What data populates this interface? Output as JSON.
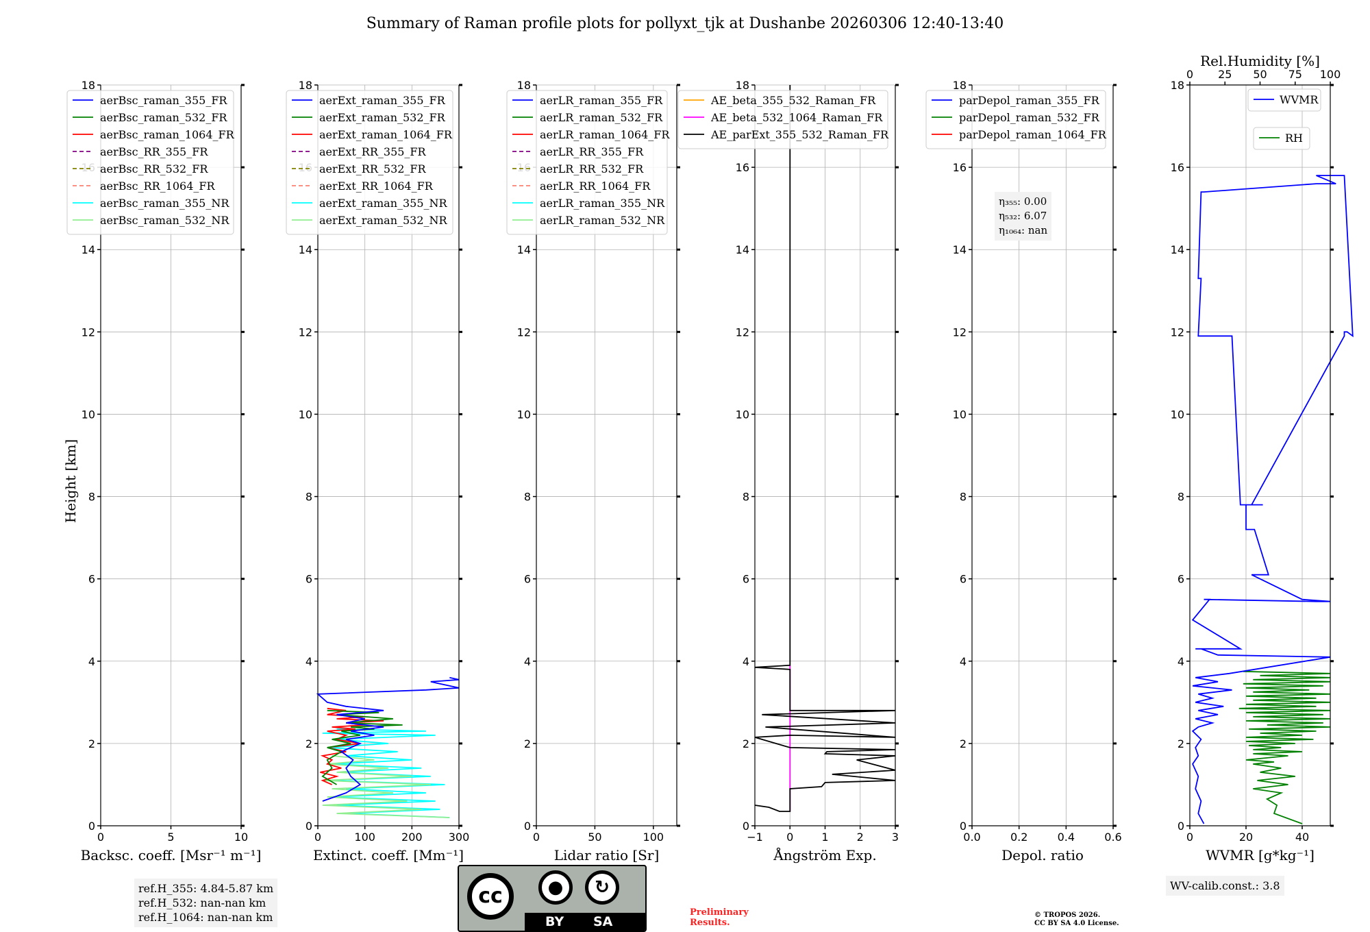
{
  "title": "Summary of Raman profile plots for pollyxt_tjk at Dushanbe 20260306 12:40-13:40",
  "y_axis": {
    "label": "Height [km]",
    "ticks": [
      "0",
      "2",
      "4",
      "6",
      "8",
      "10",
      "12",
      "14",
      "16",
      "18"
    ]
  },
  "chart_data": [
    {
      "type": "line",
      "name": "backscatter",
      "xlabel": "Backsc. coeff. [Msr⁻¹ m⁻¹]",
      "xlim": [
        0,
        10
      ],
      "ylim": [
        0,
        18
      ],
      "xticks": [
        "0",
        "5",
        "10"
      ],
      "legend": [
        "aerBsc_raman_355_FR",
        "aerBsc_raman_532_FR",
        "aerBsc_raman_1064_FR",
        "aerBsc_RR_355_FR",
        "aerBsc_RR_532_FR",
        "aerBsc_RR_1064_FR",
        "aerBsc_raman_355_NR",
        "aerBsc_raman_532_NR"
      ],
      "series": []
    },
    {
      "type": "line",
      "name": "extinction",
      "xlabel": "Extinct. coeff. [Mm⁻¹]",
      "xlim": [
        0,
        300
      ],
      "ylim": [
        0,
        18
      ],
      "xticks": [
        "0",
        "100",
        "200",
        "300"
      ],
      "legend": [
        "aerExt_raman_355_FR",
        "aerExt_raman_532_FR",
        "aerExt_raman_1064_FR",
        "aerExt_RR_355_FR",
        "aerExt_RR_532_FR",
        "aerExt_RR_1064_FR",
        "aerExt_raman_355_NR",
        "aerExt_raman_532_NR"
      ],
      "series": [
        {
          "name": "aerExt_raman_355_NR",
          "x": [
            280,
            60,
            260,
            40,
            250,
            30,
            230,
            60,
            270,
            20,
            240,
            50,
            220,
            30,
            200,
            60,
            170,
            20,
            150,
            40,
            250,
            10,
            230,
            40
          ],
          "y": [
            0.2,
            0.3,
            0.4,
            0.5,
            0.6,
            0.7,
            0.8,
            0.9,
            1.0,
            1.1,
            1.2,
            1.3,
            1.4,
            1.5,
            1.6,
            1.7,
            1.8,
            1.9,
            2.0,
            2.1,
            2.2,
            2.25,
            2.3,
            2.35
          ]
        },
        {
          "name": "aerExt_raman_532_NR",
          "x": [
            280,
            40,
            220,
            10,
            190,
            20,
            160,
            30,
            240,
            10,
            200,
            40,
            150,
            20,
            120,
            30
          ],
          "y": [
            0.2,
            0.3,
            0.4,
            0.5,
            0.6,
            0.7,
            0.8,
            0.9,
            1.0,
            1.1,
            1.2,
            1.3,
            1.4,
            1.5,
            1.6,
            1.7
          ]
        },
        {
          "name": "aerExt_raman_1064_FR",
          "x": [
            30,
            10,
            40,
            5,
            50,
            20,
            30,
            10,
            60,
            20,
            90,
            40,
            60,
            20,
            80,
            30,
            100,
            60,
            140,
            40,
            100,
            20,
            60,
            20
          ],
          "y": [
            1.0,
            1.1,
            1.2,
            1.3,
            1.4,
            1.5,
            1.6,
            1.7,
            1.8,
            1.9,
            2.0,
            2.1,
            2.2,
            2.3,
            2.35,
            2.4,
            2.45,
            2.5,
            2.55,
            2.6,
            2.65,
            2.7,
            2.8,
            2.85
          ]
        },
        {
          "name": "aerExt_raman_532_FR",
          "x": [
            40,
            10,
            30,
            20,
            50,
            20,
            70,
            30,
            90,
            50,
            120,
            70,
            180,
            60,
            160,
            40,
            130,
            20
          ],
          "y": [
            1.0,
            1.2,
            1.4,
            1.6,
            1.8,
            1.9,
            2.0,
            2.1,
            2.2,
            2.3,
            2.35,
            2.4,
            2.45,
            2.5,
            2.6,
            2.7,
            2.75,
            2.8
          ]
        },
        {
          "name": "aerExt_raman_355_FR",
          "x": [
            10,
            60,
            90,
            70,
            60,
            75,
            50,
            90,
            60,
            120,
            70,
            140,
            60,
            100,
            40,
            140,
            60,
            20,
            0,
            230,
            300,
            240,
            300,
            280
          ],
          "y": [
            0.6,
            0.8,
            1.0,
            1.2,
            1.4,
            1.6,
            1.8,
            2.0,
            2.1,
            2.2,
            2.3,
            2.4,
            2.5,
            2.6,
            2.7,
            2.8,
            2.9,
            3.0,
            3.2,
            3.3,
            3.35,
            3.5,
            3.55,
            3.6
          ]
        }
      ]
    },
    {
      "type": "line",
      "name": "lidar_ratio",
      "xlabel": "Lidar ratio [Sr]",
      "xlim": [
        0,
        120
      ],
      "ylim": [
        0,
        18
      ],
      "xticks": [
        "0",
        "50",
        "100"
      ],
      "legend": [
        "aerLR_raman_355_FR",
        "aerLR_raman_532_FR",
        "aerLR_raman_1064_FR",
        "aerLR_RR_355_FR",
        "aerLR_RR_532_FR",
        "aerLR_RR_1064_FR",
        "aerLR_raman_355_NR",
        "aerLR_raman_532_NR"
      ],
      "series": []
    },
    {
      "type": "line",
      "name": "angstrom",
      "xlabel": "Ångström Exp.",
      "xlim": [
        -1,
        3
      ],
      "ylim": [
        0,
        18
      ],
      "xticks": [
        "−1",
        "0",
        "1",
        "2",
        "3"
      ],
      "legend": [
        "AE_beta_355_532_Raman_FR",
        "AE_beta_532_1064_Raman_FR",
        "AE_parExt_355_532_Raman_FR"
      ],
      "series": [
        {
          "name": "AE_beta_532_1064_Raman_FR",
          "x": [
            0,
            0
          ],
          "y": [
            0.35,
            3.9
          ]
        },
        {
          "name": "AE_parExt_355_532_Raman_FR",
          "x": [
            -1,
            -0.6,
            -0.3,
            0,
            0,
            0.9,
            1,
            3,
            1.2,
            3,
            1.9,
            3,
            1,
            1.05,
            3,
            0,
            -1,
            0,
            3,
            -0.7,
            3,
            -0.8,
            3,
            0,
            0,
            -1,
            0,
            0
          ],
          "y": [
            0.5,
            0.45,
            0.35,
            0.35,
            0.9,
            0.95,
            1.05,
            1.1,
            1.25,
            1.35,
            1.6,
            1.7,
            1.75,
            1.8,
            1.85,
            1.9,
            2.15,
            2.2,
            2.15,
            2.4,
            2.5,
            2.7,
            2.8,
            2.8,
            3.8,
            3.85,
            3.9,
            18
          ]
        }
      ]
    },
    {
      "type": "line",
      "name": "depolarization",
      "xlabel": "Depol. ratio",
      "xlim": [
        0,
        0.6
      ],
      "ylim": [
        0,
        18
      ],
      "xticks": [
        "0.0",
        "0.2",
        "0.4",
        "0.6"
      ],
      "legend": [
        "parDepol_raman_355_FR",
        "parDepol_raman_532_FR",
        "parDepol_raman_1064_FR"
      ],
      "series": []
    },
    {
      "type": "line",
      "name": "water_vapor",
      "xlabel": "WVMR [g*kg⁻¹]",
      "xlim": [
        0,
        50
      ],
      "ylim": [
        0,
        18
      ],
      "xticks": [
        "0",
        "20",
        "40"
      ],
      "top_axis": {
        "label": "Rel.Humidity [%]",
        "lim": [
          0,
          100
        ],
        "ticks": [
          "0",
          "25",
          "50",
          "75",
          "100"
        ]
      },
      "legend": [
        "WVMR",
        "RH"
      ],
      "series": [
        {
          "name": "RH",
          "axis": "top",
          "x": [
            80,
            60,
            62,
            55,
            65,
            45,
            70,
            48,
            75,
            50,
            65,
            45,
            60,
            40,
            70,
            45,
            80,
            45,
            65,
            42,
            75,
            40,
            88,
            40,
            80,
            50,
            90,
            42,
            100,
            55,
            95,
            40,
            100,
            45,
            95,
            40,
            100,
            35,
            90,
            40,
            100,
            45,
            90,
            40,
            100,
            45,
            85,
            40,
            95,
            38,
            100,
            45,
            100,
            50,
            100,
            38
          ],
          "y": [
            0.05,
            0.3,
            0.5,
            0.65,
            0.8,
            0.9,
            1.0,
            1.1,
            1.2,
            1.3,
            1.4,
            1.5,
            1.55,
            1.6,
            1.7,
            1.75,
            1.8,
            1.85,
            1.9,
            1.95,
            2.0,
            2.05,
            2.1,
            2.15,
            2.2,
            2.25,
            2.3,
            2.35,
            2.4,
            2.45,
            2.5,
            2.55,
            2.6,
            2.65,
            2.7,
            2.75,
            2.8,
            2.85,
            2.9,
            2.95,
            3.0,
            3.05,
            3.1,
            3.15,
            3.2,
            3.25,
            3.3,
            3.35,
            3.4,
            3.45,
            3.5,
            3.55,
            3.6,
            3.65,
            3.7,
            3.75
          ]
        },
        {
          "name": "WVMR",
          "axis": "bottom",
          "x": [
            5,
            3,
            4,
            2,
            3,
            1,
            3,
            2,
            4,
            1,
            3,
            8,
            2,
            10,
            3,
            12,
            2,
            8,
            3,
            15,
            1,
            10,
            2,
            14,
            50,
            10,
            4,
            2,
            18,
            1,
            1,
            7,
            5,
            45,
            50,
            40,
            22,
            28,
            23,
            20,
            20,
            18,
            15,
            3,
            4,
            3,
            4,
            5,
            45,
            52,
            45,
            55,
            58,
            56,
            55,
            55,
            22,
            26,
            19
          ],
          "y": [
            0.05,
            0.3,
            0.6,
            0.9,
            1.2,
            1.5,
            1.7,
            1.9,
            2.1,
            2.3,
            2.4,
            2.5,
            2.6,
            2.7,
            2.8,
            2.9,
            3.0,
            3.1,
            3.2,
            3.3,
            3.4,
            3.5,
            3.6,
            3.7,
            4.1,
            4.15,
            4.3,
            4.3,
            4.3,
            5.0,
            5.0,
            5.5,
            5.5,
            5.45,
            5.45,
            5.5,
            6.1,
            6.1,
            7.2,
            7.2,
            7.8,
            7.8,
            11.9,
            11.9,
            13.3,
            13.3,
            15.4,
            15.4,
            15.6,
            15.6,
            15.8,
            15.8,
            11.9,
            12.0,
            12.0,
            11.9,
            7.8,
            7.8,
            7.8
          ]
        }
      ]
    }
  ],
  "eta_box": {
    "line1": "η₃₅₅: 0.00",
    "line2": "η₅₃₂: 6.07",
    "line3": "η₁₀₆₄: nan"
  },
  "refh_box": {
    "line1": "ref.H_355: 4.84-5.87 km",
    "line2": "ref.H_532: nan-nan km",
    "line3": "ref.H_1064: nan-nan km"
  },
  "wv_box": {
    "line1": "WV-calib.const.: 3.8"
  },
  "license_badge": {
    "cc": "cc",
    "by": "BY",
    "sa": "SA"
  },
  "preliminary": {
    "line1": "Preliminary",
    "line2": "Results."
  },
  "copyright": {
    "line1": "© TROPOS 2026.",
    "line2": "CC BY SA 4.0 License."
  },
  "colors": {
    "blue": "#0000ff",
    "green": "#008000",
    "red": "#ff0000",
    "purple": "#800080",
    "olive": "#808000",
    "salmon": "#fa8072",
    "cyan": "#00ffff",
    "lightgreen": "#90ee90",
    "orange": "#ffa500",
    "magenta": "#ff00ff",
    "black": "#000000",
    "preliminary": "#ff0000"
  }
}
